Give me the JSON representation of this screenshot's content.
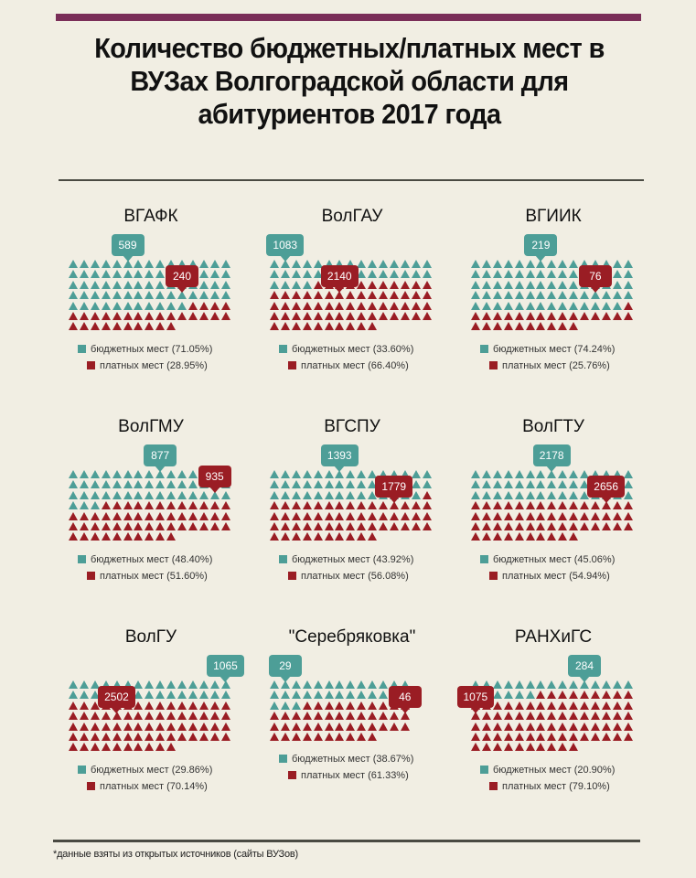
{
  "header": {
    "title": "Количество бюджетных/платных мест в ВУЗах Волгоградской области для абитуриентов 2017 года"
  },
  "legend_labels": {
    "budget": "бюджетных мест",
    "paid": "платных мест"
  },
  "colors": {
    "budget": "#4d9e97",
    "paid": "#9a1d24",
    "top_bar": "#7a2e58",
    "background": "#f1eee3"
  },
  "footer": {
    "note": "*данные взяты из открытых источников (сайты ВУЗов)"
  },
  "chart_data": {
    "type": "waffle",
    "title": "Количество бюджетных/платных мест в ВУЗах Волгоградской области для абитуриентов 2017 года",
    "legend": [
      "бюджетных мест",
      "платных мест"
    ],
    "unit_note": "each triangle ≈ 1% (100 icons per university); \"Серебряковка\" shows 75 icons, one per place",
    "categories": [
      "ВГАФК",
      "ВолГАУ",
      "ВГИИК",
      "ВолГМУ",
      "ВГСПУ",
      "ВолГТУ",
      "ВолГУ",
      "\"Серебряковка\"",
      "РАНХиГС"
    ],
    "series": [
      {
        "name": "бюджетных мест",
        "values": [
          589,
          1083,
          219,
          877,
          1393,
          2178,
          1065,
          29,
          284
        ],
        "percent": [
          71.05,
          33.6,
          74.24,
          48.4,
          43.92,
          45.06,
          29.86,
          38.67,
          20.9
        ]
      },
      {
        "name": "платных мест",
        "values": [
          240,
          2140,
          76,
          935,
          1779,
          2656,
          2502,
          46,
          1075
        ],
        "percent": [
          28.95,
          66.4,
          25.76,
          51.6,
          56.08,
          54.94,
          70.14,
          61.33,
          79.1
        ]
      }
    ],
    "panels": [
      {
        "name": "ВГАФК",
        "budget": 589,
        "paid": 240,
        "budget_pct": "71.05%",
        "paid_pct": "28.95%",
        "cols": 15,
        "icons": 100,
        "budget_icons": 71,
        "budget_badge_col": 5,
        "budget_badge_row": 0,
        "paid_badge_col": 10,
        "paid_badge_row": 3
      },
      {
        "name": "ВолГАУ",
        "budget": 1083,
        "paid": 2140,
        "budget_pct": "33.60%",
        "paid_pct": "66.40%",
        "cols": 15,
        "icons": 100,
        "budget_icons": 34,
        "budget_badge_col": 1,
        "budget_badge_row": 0,
        "paid_badge_col": 6,
        "paid_badge_row": 3
      },
      {
        "name": "ВГИИК",
        "budget": 219,
        "paid": 76,
        "budget_pct": "74.24%",
        "paid_pct": "25.76%",
        "cols": 15,
        "icons": 100,
        "budget_icons": 74,
        "budget_badge_col": 6,
        "budget_badge_row": 0,
        "paid_badge_col": 11,
        "paid_badge_row": 3
      },
      {
        "name": "ВолГМУ",
        "budget": 877,
        "paid": 935,
        "budget_pct": "48.40%",
        "paid_pct": "51.60%",
        "cols": 15,
        "icons": 100,
        "budget_icons": 48,
        "budget_badge_col": 8,
        "budget_badge_row": 0,
        "paid_badge_col": 13,
        "paid_badge_row": 2
      },
      {
        "name": "ВГСПУ",
        "budget": 1393,
        "paid": 1779,
        "budget_pct": "43.92%",
        "paid_pct": "56.08%",
        "cols": 15,
        "icons": 100,
        "budget_icons": 44,
        "budget_badge_col": 6,
        "budget_badge_row": 0,
        "paid_badge_col": 11,
        "paid_badge_row": 3
      },
      {
        "name": "ВолГТУ",
        "budget": 2178,
        "paid": 2656,
        "budget_pct": "45.06%",
        "paid_pct": "54.94%",
        "cols": 15,
        "icons": 100,
        "budget_icons": 45,
        "budget_badge_col": 7,
        "budget_badge_row": 0,
        "paid_badge_col": 12,
        "paid_badge_row": 3
      },
      {
        "name": "ВолГУ",
        "budget": 1065,
        "paid": 2502,
        "budget_pct": "29.86%",
        "paid_pct": "70.14%",
        "cols": 15,
        "icons": 100,
        "budget_icons": 30,
        "budget_badge_col": 14,
        "budget_badge_row": 0,
        "paid_badge_col": 4,
        "paid_badge_row": 3
      },
      {
        "name": "\"Серебряковка\"",
        "budget": 29,
        "paid": 46,
        "budget_pct": "38.67%",
        "paid_pct": "61.33%",
        "cols": 13,
        "icons": 75,
        "budget_icons": 29,
        "budget_badge_col": 1,
        "budget_badge_row": 0,
        "paid_badge_col": 12,
        "paid_badge_row": 3
      },
      {
        "name": "РАНХиГС",
        "budget": 284,
        "paid": 1075,
        "budget_pct": "20.90%",
        "paid_pct": "79.10%",
        "cols": 15,
        "icons": 100,
        "budget_icons": 21,
        "budget_badge_col": 10,
        "budget_badge_row": 0,
        "paid_badge_col": 0,
        "paid_badge_row": 3
      }
    ]
  }
}
